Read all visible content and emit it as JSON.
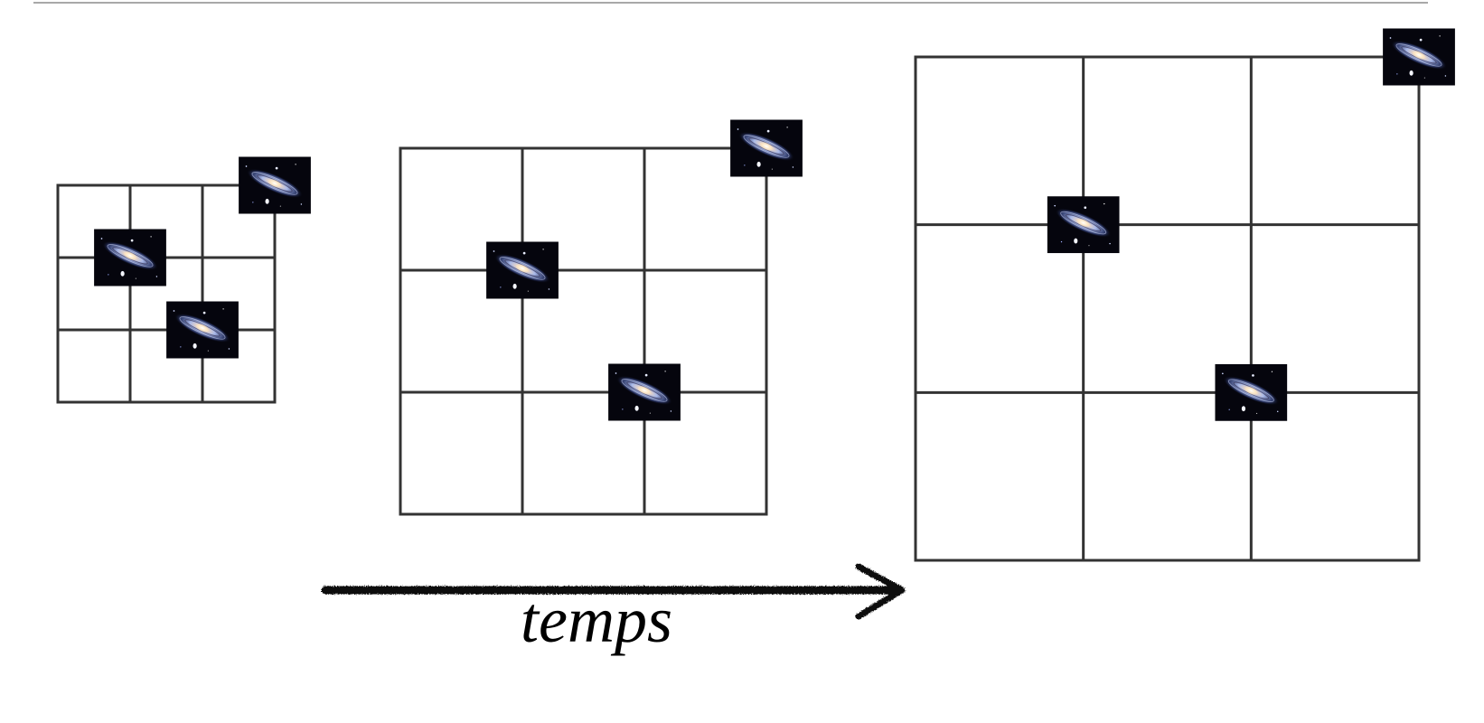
{
  "diagram": {
    "caption": "temps",
    "panel_count": 3,
    "grid_divisions": 3,
    "galaxies_per_panel": 3
  },
  "colors": {
    "grid_line": "#333333",
    "arrow": "#111111",
    "top_rule": "#8c8c8c",
    "galaxy_background": "#05050d",
    "galaxy_disk": "#a8b8e8",
    "galaxy_core": "#fff6d8"
  },
  "icons": {
    "galaxy": "galaxy-icon",
    "arrow": "arrow-right-icon"
  }
}
